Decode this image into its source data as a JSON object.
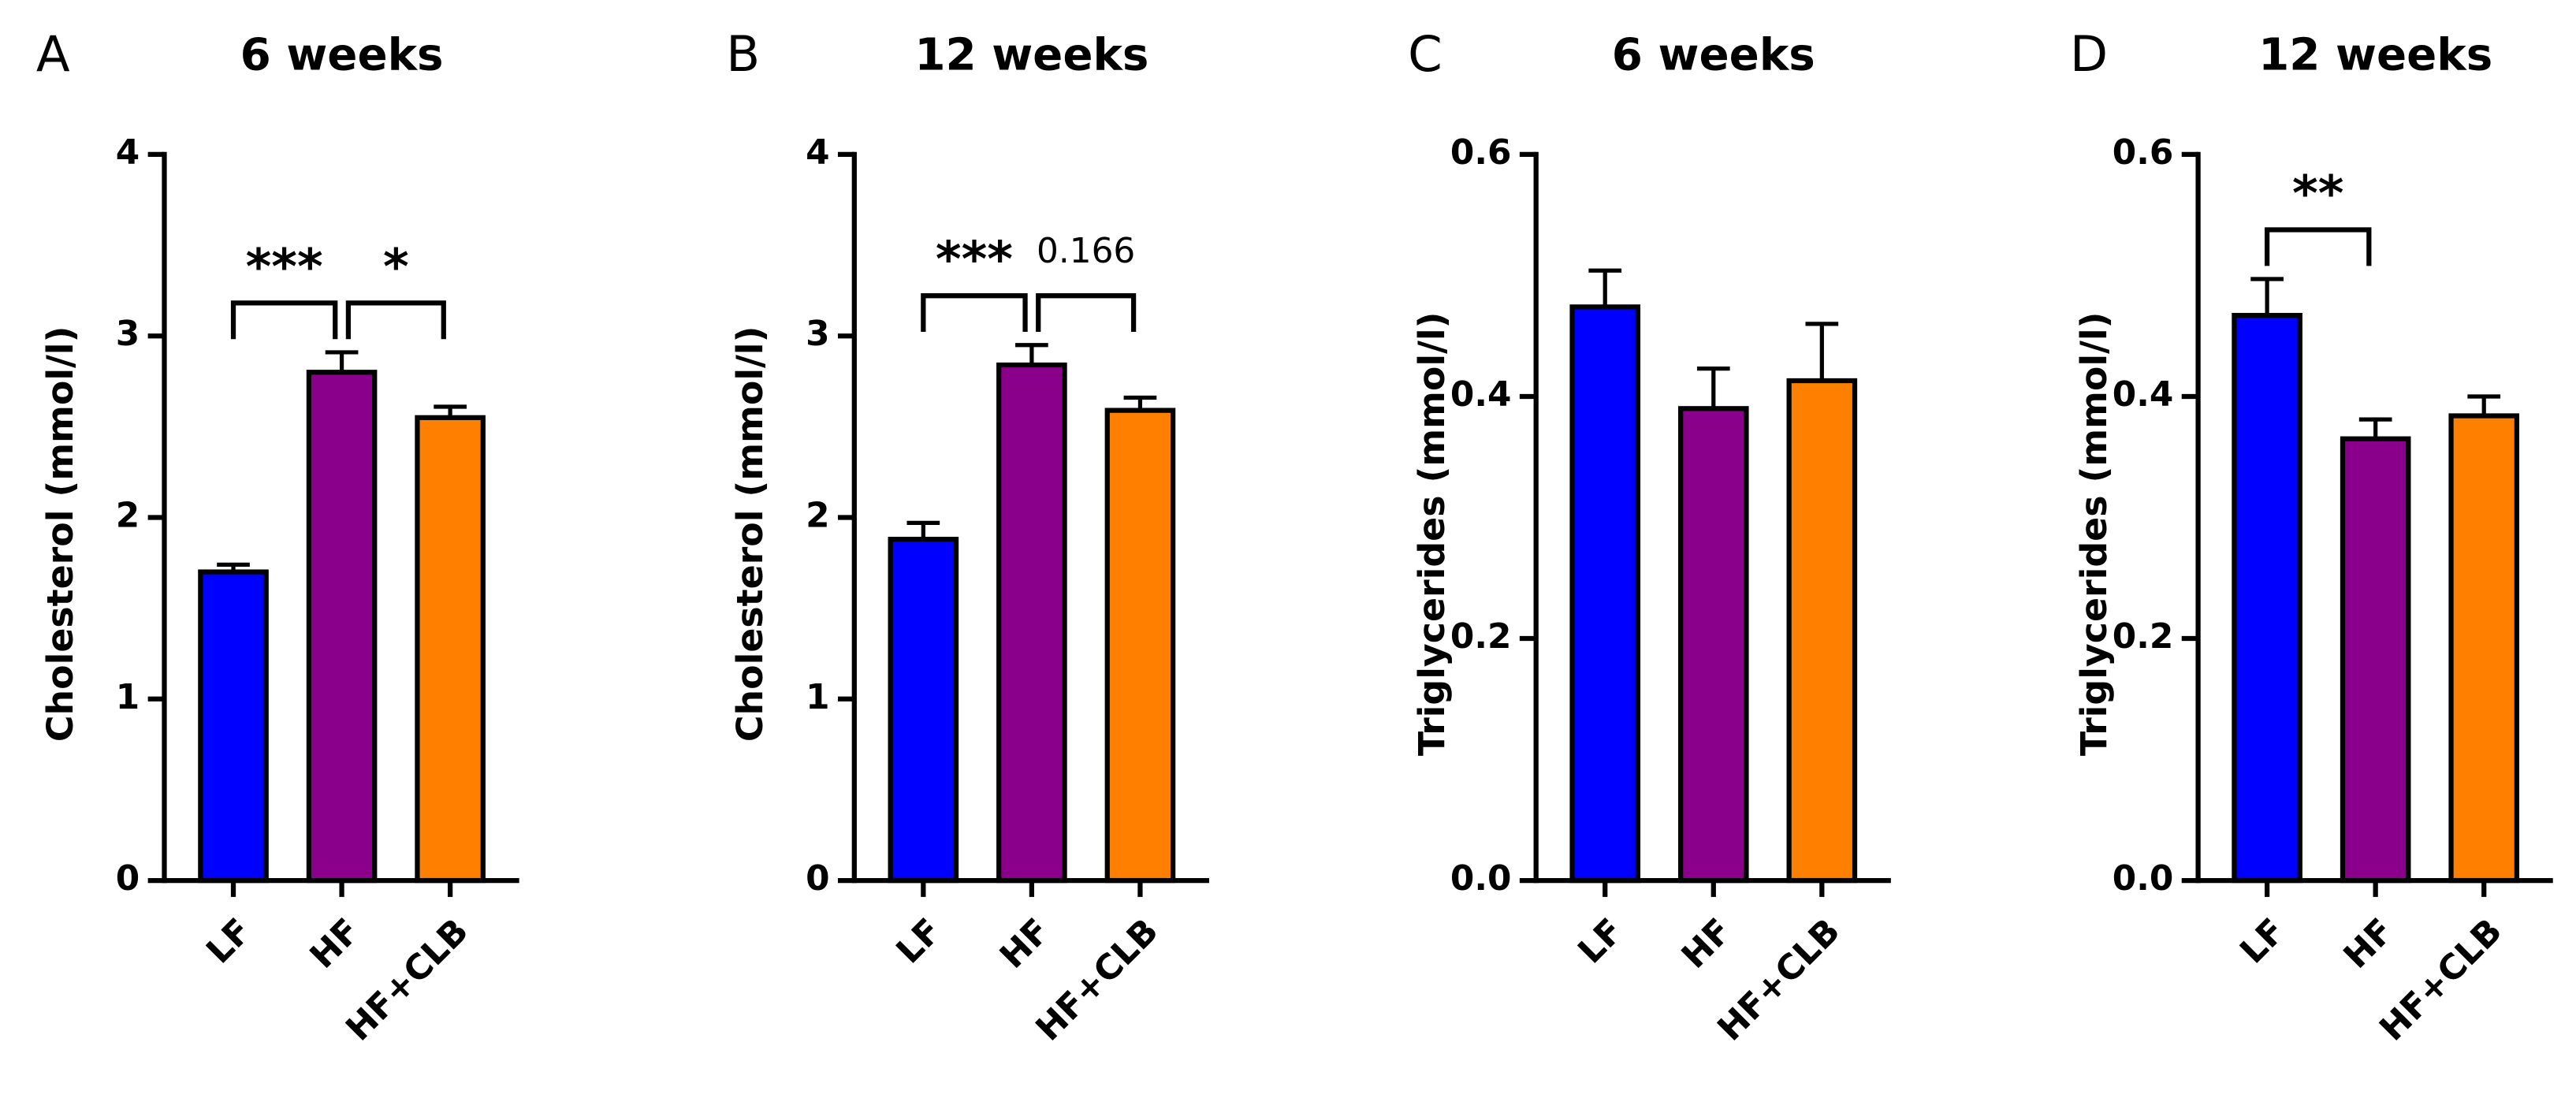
{
  "chart_data": [
    {
      "type": "bar",
      "panel": "A",
      "title": "6 weeks",
      "y_label": "Cholesterol (mmol/l)",
      "categories": [
        "LF",
        "HF",
        "HF+CLB"
      ],
      "values": [
        1.7,
        2.8,
        2.55
      ],
      "errors": [
        0.04,
        0.11,
        0.06
      ],
      "colors": [
        "#0000ff",
        "#8b008b",
        "#ff8000"
      ],
      "ylim": [
        0,
        4
      ],
      "yticks": [
        0,
        1,
        2,
        3,
        4
      ],
      "annotations": [
        {
          "text": "***",
          "from": 0,
          "to": 1
        },
        {
          "text": "*",
          "from": 1,
          "to": 2
        }
      ]
    },
    {
      "type": "bar",
      "panel": "B",
      "title": "12 weeks",
      "y_label": "Cholesterol (mmol/l)",
      "categories": [
        "LF",
        "HF",
        "HF+CLB"
      ],
      "values": [
        1.88,
        2.84,
        2.59
      ],
      "errors": [
        0.09,
        0.11,
        0.07
      ],
      "colors": [
        "#0000ff",
        "#8b008b",
        "#ff8000"
      ],
      "ylim": [
        0,
        4
      ],
      "yticks": [
        0,
        1,
        2,
        3,
        4
      ],
      "annotations": [
        {
          "text": "***",
          "from": 0,
          "to": 1
        },
        {
          "text": "0.166",
          "from": 1,
          "to": 2
        }
      ]
    },
    {
      "type": "bar",
      "panel": "C",
      "title": "6 weeks",
      "y_label": "Triglycerides (mmol/l)",
      "categories": [
        "LF",
        "HF",
        "HF+CLB"
      ],
      "values": [
        0.474,
        0.39,
        0.413
      ],
      "errors": [
        0.03,
        0.033,
        0.047
      ],
      "colors": [
        "#0000ff",
        "#8b008b",
        "#ff8000"
      ],
      "ylim": [
        0,
        0.6
      ],
      "yticks": [
        {
          "value": 0,
          "label": "0.0"
        },
        0.2,
        0.4,
        0.6
      ],
      "annotations": []
    },
    {
      "type": "bar",
      "panel": "D",
      "title": "12 weeks",
      "y_label": "Triglycerides (mmol/l)",
      "categories": [
        "LF",
        "HF",
        "HF+CLB"
      ],
      "values": [
        0.467,
        0.365,
        0.384
      ],
      "errors": [
        0.03,
        0.016,
        0.016
      ],
      "colors": [
        "#0000ff",
        "#8b008b",
        "#ff8000"
      ],
      "ylim": [
        0,
        0.6
      ],
      "yticks": [
        {
          "value": 0,
          "label": "0.0"
        },
        0.2,
        0.4,
        0.6
      ],
      "annotations": [
        {
          "text": "**",
          "from": 0,
          "to": 1
        }
      ]
    }
  ]
}
